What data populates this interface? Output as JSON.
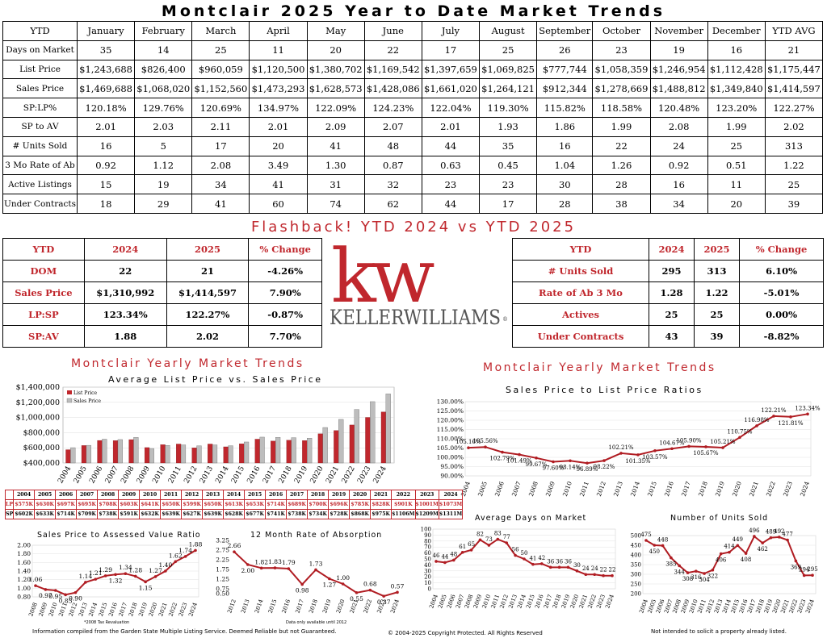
{
  "title": "Montclair 2025 Year to Date Market Trends",
  "ytd_table": {
    "corner": "YTD",
    "columns": [
      "January",
      "February",
      "March",
      "April",
      "May",
      "June",
      "July",
      "August",
      "September",
      "October",
      "November",
      "December",
      "YTD AVG"
    ],
    "rows": [
      {
        "label": "Days on Market",
        "values": [
          "35",
          "14",
          "25",
          "11",
          "20",
          "22",
          "17",
          "25",
          "26",
          "23",
          "19",
          "16",
          "21"
        ]
      },
      {
        "label": "List Price",
        "values": [
          "$1,243,688",
          "$826,400",
          "$960,059",
          "$1,120,500",
          "$1,380,702",
          "$1,169,542",
          "$1,397,659",
          "$1,069,825",
          "$777,744",
          "$1,058,359",
          "$1,246,954",
          "$1,112,428",
          "$1,175,447"
        ]
      },
      {
        "label": "Sales Price",
        "values": [
          "$1,469,688",
          "$1,068,020",
          "$1,152,560",
          "$1,473,293",
          "$1,628,573",
          "$1,428,086",
          "$1,661,020",
          "$1,264,121",
          "$912,344",
          "$1,278,669",
          "$1,488,812",
          "$1,349,840",
          "$1,414,597"
        ]
      },
      {
        "label": "SP:LP%",
        "values": [
          "120.18%",
          "129.76%",
          "120.69%",
          "134.97%",
          "122.09%",
          "124.23%",
          "122.04%",
          "119.30%",
          "115.82%",
          "118.58%",
          "120.48%",
          "123.20%",
          "122.27%"
        ]
      },
      {
        "label": "SP to AV",
        "values": [
          "2.01",
          "2.03",
          "2.11",
          "2.01",
          "2.09",
          "2.07",
          "2.01",
          "1.93",
          "1.86",
          "1.99",
          "2.08",
          "1.99",
          "2.02"
        ]
      },
      {
        "label": "# Units Sold",
        "values": [
          "16",
          "5",
          "17",
          "20",
          "41",
          "48",
          "44",
          "35",
          "16",
          "22",
          "24",
          "25",
          "313"
        ]
      },
      {
        "label": "3 Mo Rate of Ab",
        "values": [
          "0.92",
          "1.12",
          "2.08",
          "3.49",
          "1.30",
          "0.87",
          "0.63",
          "0.45",
          "1.04",
          "1.26",
          "0.92",
          "0.51",
          "1.22"
        ]
      },
      {
        "label": "Active Listings",
        "values": [
          "15",
          "19",
          "34",
          "41",
          "31",
          "32",
          "23",
          "23",
          "30",
          "28",
          "16",
          "11",
          "25"
        ]
      },
      {
        "label": "Under Contracts",
        "values": [
          "18",
          "29",
          "41",
          "60",
          "74",
          "62",
          "44",
          "17",
          "28",
          "38",
          "34",
          "20",
          "39"
        ]
      }
    ]
  },
  "flashback_title": "Flashback!  YTD 2024 vs YTD 2025",
  "compare_left": {
    "headers": [
      "YTD",
      "2024",
      "2025",
      "% Change"
    ],
    "rows": [
      [
        "DOM",
        "22",
        "21",
        "-4.26%"
      ],
      [
        "Sales Price",
        "$1,310,992",
        "$1,414,597",
        "7.90%"
      ],
      [
        "LP:SP",
        "123.34%",
        "122.27%",
        "-0.87%"
      ],
      [
        "SP:AV",
        "1.88",
        "2.02",
        "7.70%"
      ]
    ]
  },
  "compare_right": {
    "headers": [
      "YTD",
      "2024",
      "2025",
      "% Change"
    ],
    "rows": [
      [
        "# Units Sold",
        "295",
        "313",
        "6.10%"
      ],
      [
        "Rate of Ab 3 Mo",
        "1.28",
        "1.22",
        "-5.01%"
      ],
      [
        "Actives",
        "25",
        "25",
        "0.00%"
      ],
      [
        "Under Contracts",
        "43",
        "39",
        "-8.82%"
      ]
    ]
  },
  "logo": {
    "mark": "kw",
    "wordmark": "KELLERWILLIAMS",
    "registered": "®"
  },
  "colors": {
    "accent": "#c0272d",
    "bar_grey": "#bdbdbd",
    "line": "#b01c22"
  },
  "yearly_title_left": "Montclair Yearly Market Trends",
  "yearly_title_right": "Montclair Yearly Market Trends",
  "chart_data": [
    {
      "type": "bar",
      "title": "Average List Price vs. Sales Price",
      "categories": [
        "2004",
        "2005",
        "2006",
        "2007",
        "2008",
        "2009",
        "2010",
        "2011",
        "2012",
        "2013",
        "2014",
        "2015",
        "2016",
        "2017",
        "2018",
        "2019",
        "2020",
        "2021",
        "2022",
        "2023",
        "2024"
      ],
      "series": [
        {
          "name": "List Price",
          "values": [
            575000,
            630000,
            697000,
            695000,
            708000,
            603000,
            641000,
            650000,
            599000,
            650000,
            613000,
            653000,
            714000,
            689000,
            700000,
            696000,
            785000,
            828000,
            901000,
            1001000,
            1073000
          ]
        },
        {
          "name": "Sales Price",
          "values": [
            602000,
            633000,
            714000,
            709000,
            738000,
            591000,
            632000,
            639000,
            627000,
            639000,
            628000,
            677000,
            741000,
            738000,
            734000,
            728000,
            868000,
            975000,
            1106000,
            1209000,
            1311000
          ]
        }
      ],
      "ylim": [
        400000,
        1400000
      ],
      "yticks": [
        "$400,000",
        "$600,000",
        "$800,000",
        "$1,000,000",
        "$1,200,000",
        "$1,400,000"
      ],
      "legend": "top-left"
    },
    {
      "type": "line",
      "title": "Sales Price to List Price Ratios",
      "x": [
        "2004",
        "2005",
        "2006",
        "2007",
        "2008",
        "2009",
        "2010",
        "2011",
        "2012",
        "2013",
        "2014",
        "2015",
        "2016",
        "2017",
        "2018",
        "2019",
        "2020",
        "2021",
        "2022",
        "2023",
        "2024"
      ],
      "values": [
        105.16,
        105.56,
        102.79,
        101.49,
        99.67,
        97.6,
        98.14,
        96.89,
        98.22,
        102.21,
        101.35,
        103.57,
        104.67,
        105.9,
        105.67,
        105.21,
        110.75,
        116.98,
        122.21,
        121.81,
        123.34
      ],
      "labels": [
        "105.16%",
        "105.56%",
        "102.79%",
        "101.49%",
        "99.67%",
        "97.60%",
        "98.14%",
        "96.89%",
        "98.22%",
        "102.21%",
        "101.35%",
        "103.57%",
        "104.67%",
        "105.90%",
        "105.67%",
        "105.21%",
        "110.75%",
        "116.98%",
        "122.21%",
        "121.81%",
        "123.34%"
      ],
      "ylim": [
        90,
        130
      ],
      "yticks": [
        "90.00%",
        "95.00%",
        "100.00%",
        "105.00%",
        "110.00%",
        "115.00%",
        "120.00%",
        "125.00%",
        "130.00%"
      ]
    },
    {
      "type": "table",
      "rows": [
        {
          "label": "LP",
          "values": [
            "$575K",
            "$630K",
            "$697K",
            "$695K",
            "$708K",
            "$603K",
            "$641K",
            "$650K",
            "$599K",
            "$650K",
            "$613K",
            "$653K",
            "$714K",
            "$689K",
            "$700K",
            "$696K",
            "$785K",
            "$828K",
            "$901K",
            "$1001M",
            "$1073M"
          ]
        },
        {
          "label": "SP",
          "values": [
            "$602K",
            "$633K",
            "$714K",
            "$709K",
            "$738K",
            "$591K",
            "$632K",
            "$639K",
            "$627K",
            "$639K",
            "$628K",
            "$677K",
            "$741K",
            "$738K",
            "$734K",
            "$728K",
            "$868K",
            "$975K",
            "$1106M",
            "$1209M",
            "$1311M"
          ]
        }
      ],
      "years": [
        "2004",
        "2005",
        "2006",
        "2007",
        "2008",
        "2009",
        "2010",
        "2011",
        "2012",
        "2013",
        "2014",
        "2015",
        "2016",
        "2017",
        "2018",
        "2019",
        "2020",
        "2021",
        "2022",
        "2023",
        "2024"
      ]
    },
    {
      "type": "line",
      "title": "Sales Price to Assessed Value Ratio",
      "x": [
        "2008",
        "2009",
        "2010",
        "2011",
        "2012",
        "2013",
        "2014",
        "2015",
        "2016",
        "2017",
        "2018",
        "2019",
        "2020",
        "2021",
        "2022",
        "2023",
        "2024"
      ],
      "values": [
        1.06,
        0.97,
        0.95,
        0.85,
        0.9,
        1.14,
        1.21,
        1.29,
        1.32,
        1.34,
        1.28,
        1.15,
        1.27,
        1.4,
        1.62,
        1.74,
        1.88
      ],
      "labels": [
        "1.06",
        "0.97",
        "0.95",
        "0.85",
        "0.90",
        "1.14",
        "1.21",
        "1.29",
        "1.32",
        "1.34",
        "1.28",
        "1.15",
        "1.27",
        "1.40",
        "1.62",
        "1.74",
        "1.88"
      ],
      "ylim": [
        0.8,
        2.0
      ],
      "yticks": [
        "0.80",
        "1.00",
        "1.20",
        "1.40",
        "1.60",
        "1.80",
        "2.00"
      ],
      "note": "*2008 Tax Revaluation"
    },
    {
      "type": "line",
      "title": "12 Month Rate of Absorption",
      "x": [
        "2012",
        "2013",
        "2014",
        "2015",
        "2016",
        "2017",
        "2018",
        "2019",
        "2020",
        "2021",
        "2022",
        "2023",
        "2024"
      ],
      "values": [
        2.66,
        2.0,
        1.82,
        1.83,
        1.79,
        0.98,
        1.73,
        1.27,
        1.0,
        0.55,
        0.68,
        0.37,
        0.57
      ],
      "labels": [
        "2.66",
        "2.00",
        "1.82",
        "1.83",
        "1.79",
        "0.98",
        "1.73",
        "1.27",
        "1.00",
        "0.55",
        "0.68",
        "0.37",
        "0.57"
      ],
      "ylim": [
        0.5,
        3.25
      ],
      "yticks": [
        "0.50",
        "0.75",
        "1.25",
        "1.75",
        "2.25",
        "2.75",
        "3.25"
      ],
      "note": "Data only available until 2012"
    },
    {
      "type": "line",
      "title": "Average Days on Market",
      "x": [
        "2004",
        "2005",
        "2006",
        "2007",
        "2008",
        "2009",
        "2010",
        "2011",
        "2012",
        "2013",
        "2014",
        "2015",
        "2016",
        "2017",
        "2018",
        "2019",
        "2020",
        "2021",
        "2022",
        "2023",
        "2024"
      ],
      "values": [
        46,
        44,
        48,
        61,
        65,
        82,
        73,
        83,
        77,
        56,
        50,
        41,
        42,
        36,
        36,
        36,
        30,
        24,
        24,
        22,
        22
      ],
      "labels": [
        "46",
        "44",
        "48",
        "61",
        "65",
        "82",
        "73",
        "83",
        "77",
        "56",
        "50",
        "41",
        "42",
        "36",
        "36",
        "36",
        "30",
        "24",
        "24",
        "22",
        "22"
      ],
      "ylim": [
        0,
        100
      ],
      "yticks": [
        "0",
        "10",
        "20",
        "30",
        "40",
        "50",
        "60",
        "70",
        "80",
        "90",
        "100"
      ]
    },
    {
      "type": "line",
      "title": "Number of Units Sold",
      "x": [
        "2004",
        "2005",
        "2006",
        "2007",
        "2008",
        "2009",
        "2010",
        "2011",
        "2012",
        "2013",
        "2014",
        "2015",
        "2016",
        "2017",
        "2018",
        "2019",
        "2020",
        "2021",
        "2022",
        "2023",
        "2024"
      ],
      "values": [
        475,
        450,
        448,
        385,
        344,
        308,
        316,
        304,
        322,
        406,
        414,
        449,
        408,
        496,
        462,
        489,
        492,
        477,
        369,
        294,
        295
      ],
      "labels": [
        "475",
        "450",
        "448",
        "385",
        "344",
        "308",
        "316",
        "304",
        "322",
        "406",
        "414",
        "449",
        "408",
        "496",
        "462",
        "489",
        "492",
        "477",
        "369",
        "294",
        "295"
      ],
      "ylim": [
        200,
        500
      ],
      "yticks": [
        "200",
        "250",
        "300",
        "350",
        "400",
        "450",
        "500"
      ]
    }
  ],
  "footer": {
    "left": "Information compiled from the Garden State Multiple Listing Service.  Deemed Reliable but not Guaranteed.",
    "center": "© 2004-2025 Copyright Protected.  All Rights Reserved",
    "right": "Not intended to solicit a property already listed."
  }
}
